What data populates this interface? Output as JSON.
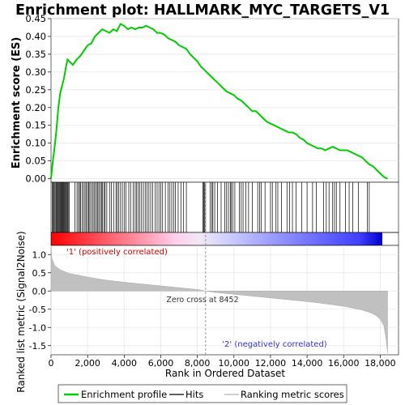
{
  "chart_data": [
    {
      "type": "line",
      "title": "Enrichment plot: HALLMARK_MYC_TARGETS_V1",
      "ylabel": "Enrichment score (ES)",
      "ylim": [
        -0.01,
        0.45
      ],
      "yticks": [
        "0.00",
        "0.05",
        "0.10",
        "0.15",
        "0.20",
        "0.25",
        "0.30",
        "0.35",
        "0.40",
        "0.45"
      ],
      "xlim": [
        0,
        19000
      ],
      "grid": true,
      "series": [
        {
          "name": "Enrichment profile",
          "color": "#00cc00",
          "x": [
            0,
            100,
            200,
            300,
            400,
            500,
            600,
            700,
            800,
            900,
            1000,
            1200,
            1400,
            1600,
            1800,
            2000,
            2200,
            2400,
            2600,
            2800,
            3000,
            3200,
            3400,
            3600,
            3800,
            4000,
            4200,
            4400,
            4600,
            4800,
            5000,
            5200,
            5400,
            5600,
            5800,
            6000,
            6200,
            6400,
            6600,
            6800,
            7000,
            7200,
            7400,
            7600,
            7800,
            8000,
            8200,
            8400,
            8600,
            8800,
            9000,
            9200,
            9400,
            9600,
            9800,
            10000,
            10200,
            10400,
            10600,
            10800,
            11000,
            11200,
            11400,
            11600,
            11800,
            12000,
            12200,
            12400,
            12600,
            12800,
            13000,
            13200,
            13400,
            13600,
            13800,
            14000,
            14200,
            14400,
            14600,
            14800,
            15000,
            15200,
            15400,
            15600,
            15800,
            16000,
            16200,
            16400,
            16600,
            16800,
            17000,
            17200,
            17400,
            17600,
            17800,
            18000,
            18200,
            18400
          ],
          "values": [
            0.0,
            0.05,
            0.09,
            0.14,
            0.2,
            0.24,
            0.26,
            0.28,
            0.31,
            0.335,
            0.33,
            0.32,
            0.335,
            0.345,
            0.36,
            0.375,
            0.38,
            0.4,
            0.41,
            0.42,
            0.415,
            0.41,
            0.42,
            0.415,
            0.435,
            0.43,
            0.42,
            0.425,
            0.42,
            0.425,
            0.425,
            0.43,
            0.425,
            0.42,
            0.41,
            0.41,
            0.405,
            0.395,
            0.39,
            0.385,
            0.375,
            0.37,
            0.365,
            0.35,
            0.34,
            0.33,
            0.315,
            0.305,
            0.295,
            0.285,
            0.275,
            0.265,
            0.255,
            0.245,
            0.24,
            0.235,
            0.225,
            0.22,
            0.21,
            0.2,
            0.19,
            0.19,
            0.18,
            0.17,
            0.16,
            0.155,
            0.15,
            0.145,
            0.14,
            0.135,
            0.13,
            0.13,
            0.125,
            0.115,
            0.11,
            0.1,
            0.095,
            0.09,
            0.085,
            0.085,
            0.08,
            0.085,
            0.09,
            0.085,
            0.08,
            0.08,
            0.08,
            0.075,
            0.07,
            0.065,
            0.06,
            0.05,
            0.04,
            0.035,
            0.025,
            0.015,
            0.005,
            0.0
          ]
        }
      ]
    },
    {
      "type": "line",
      "ylabel": "Ranked list metric (Signal2Noise)",
      "xlabel": "Rank in Ordered Dataset",
      "ylim": [
        -1.75,
        1.25
      ],
      "yticks": [
        "-1.5",
        "-1.0",
        "-0.5",
        "0.0",
        "0.5",
        "1.0"
      ],
      "xlim": [
        0,
        19000
      ],
      "xticks": [
        "0",
        "2,000",
        "4,000",
        "6,000",
        "8,000",
        "10,000",
        "12,000",
        "14,000",
        "16,000",
        "18,000"
      ],
      "grid": true,
      "series": [
        {
          "name": "Ranking metric scores",
          "color": "#c0c0c0",
          "x": [
            0,
            50,
            200,
            500,
            1000,
            2000,
            3000,
            4000,
            5000,
            6000,
            7000,
            8000,
            8452,
            9000,
            10000,
            11000,
            12000,
            13000,
            14000,
            15000,
            16000,
            17000,
            17500,
            17800,
            18000,
            18200,
            18300,
            18400
          ],
          "values": [
            1.25,
            0.9,
            0.7,
            0.58,
            0.48,
            0.38,
            0.3,
            0.24,
            0.19,
            0.14,
            0.09,
            0.04,
            0.0,
            -0.04,
            -0.09,
            -0.14,
            -0.19,
            -0.24,
            -0.29,
            -0.35,
            -0.42,
            -0.52,
            -0.6,
            -0.68,
            -0.78,
            -0.95,
            -1.25,
            -1.7
          ]
        }
      ],
      "annotations": [
        "Zero cross at 8452",
        "'1' (positively correlated)",
        "'2' (negatively correlated)"
      ]
    }
  ],
  "hits": [
    60,
    110,
    160,
    210,
    260,
    300,
    340,
    380,
    420,
    460,
    500,
    540,
    580,
    620,
    660,
    700,
    740,
    780,
    820,
    860,
    900,
    940,
    990,
    1300,
    1420,
    1500,
    1560,
    1620,
    1700,
    1780,
    1860,
    1920,
    2000,
    2060,
    2120,
    2200,
    2280,
    2350,
    2420,
    2500,
    2560,
    2620,
    2700,
    2760,
    2820,
    2900,
    2960,
    3050,
    3200,
    3300,
    3420,
    3550,
    3620,
    3700,
    3800,
    3900,
    4000,
    4100,
    4250,
    4350,
    4500,
    4600,
    4680,
    4760,
    4850,
    4950,
    5050,
    5150,
    5250,
    5350,
    5450,
    5550,
    5700,
    5800,
    5900,
    6000,
    6100,
    6250,
    6400,
    6500,
    6600,
    6700,
    6800,
    6950,
    7100,
    7250,
    7400,
    8300,
    8350,
    8400,
    8450,
    8700,
    8800,
    8850,
    8950,
    9100,
    9300,
    9500,
    9600,
    9700,
    9800,
    9850,
    9950,
    10050,
    10300,
    10400,
    10500,
    10650,
    10800,
    11000,
    11300,
    11400,
    11500,
    11700,
    12000,
    12100,
    12300,
    12400,
    12600,
    12900,
    13050,
    13200,
    13400,
    13700,
    14000,
    14300,
    14500,
    14900,
    15050,
    15200,
    15400,
    15500,
    15600,
    15800,
    16100,
    16300,
    16500,
    16800,
    17300,
    17400
  ],
  "legend": {
    "items": [
      {
        "label": "Enrichment profile",
        "color": "#00cc00"
      },
      {
        "label": "Hits",
        "color": "#000000"
      },
      {
        "label": "Ranking metric scores",
        "color": "#c0c0c0"
      }
    ]
  },
  "colors": {
    "positive": "#ff0000",
    "negative": "#0000ff",
    "zero_line": "#808080",
    "grid": "#e6e6e6"
  }
}
